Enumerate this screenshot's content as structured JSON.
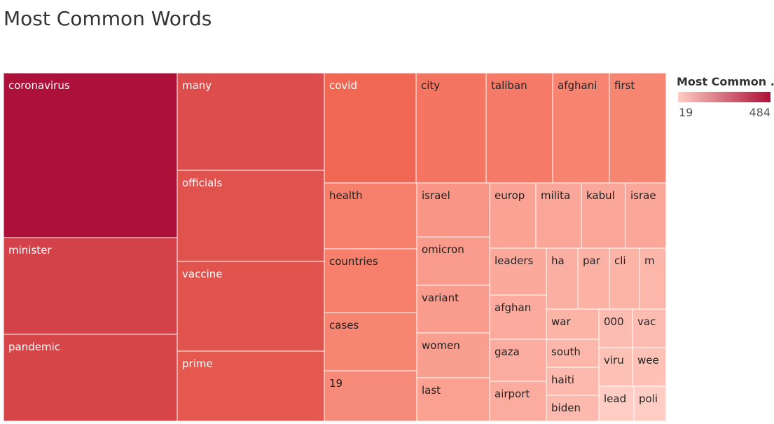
{
  "chart_data": {
    "type": "treemap",
    "title": "Most Common Words",
    "legend": {
      "title": "Most Common ..",
      "min": 19,
      "max": 484,
      "color_low": "#ffcdc4",
      "color_high": "#ad1038",
      "placement": "top-right"
    },
    "items": [
      {
        "label": "coronavirus",
        "value": 484
      },
      {
        "label": "minister",
        "value": 248
      },
      {
        "label": "pandemic",
        "value": 232
      },
      {
        "label": "many",
        "value": 205
      },
      {
        "label": "officials",
        "value": 191
      },
      {
        "label": "vaccine",
        "value": 185
      },
      {
        "label": "prime",
        "value": 171
      },
      {
        "label": "covid",
        "value": 127
      },
      {
        "label": "city",
        "value": 95
      },
      {
        "label": "taliban",
        "value": 87
      },
      {
        "label": "afghani",
        "value": 71
      },
      {
        "label": "first",
        "value": 70
      },
      {
        "label": "health",
        "value": 78
      },
      {
        "label": "countries",
        "value": 78
      },
      {
        "label": "cases",
        "value": 70
      },
      {
        "label": "19",
        "value": 61
      },
      {
        "label": "israel",
        "value": 48
      },
      {
        "label": "omicron",
        "value": 41
      },
      {
        "label": "variant",
        "value": 40
      },
      {
        "label": "women",
        "value": 38
      },
      {
        "label": "last",
        "value": 36
      },
      {
        "label": "europ",
        "value": 34
      },
      {
        "label": "milita",
        "value": 32
      },
      {
        "label": "kabul",
        "value": 32
      },
      {
        "label": "israe",
        "value": 31
      },
      {
        "label": "leaders",
        "value": 30
      },
      {
        "label": "afghan",
        "value": 29
      },
      {
        "label": "gaza",
        "value": 28
      },
      {
        "label": "airport",
        "value": 28
      },
      {
        "label": "ha",
        "value": 26
      },
      {
        "label": "par",
        "value": 25
      },
      {
        "label": "cli",
        "value": 24
      },
      {
        "label": "m",
        "value": 23
      },
      {
        "label": "war",
        "value": 24
      },
      {
        "label": "south",
        "value": 23
      },
      {
        "label": "haiti",
        "value": 22
      },
      {
        "label": "biden",
        "value": 22
      },
      {
        "label": "000",
        "value": 21
      },
      {
        "label": "vac",
        "value": 21
      },
      {
        "label": "viru",
        "value": 20
      },
      {
        "label": "wee",
        "value": 20
      },
      {
        "label": "lead",
        "value": 19
      },
      {
        "label": "poli",
        "value": 19
      }
    ]
  }
}
